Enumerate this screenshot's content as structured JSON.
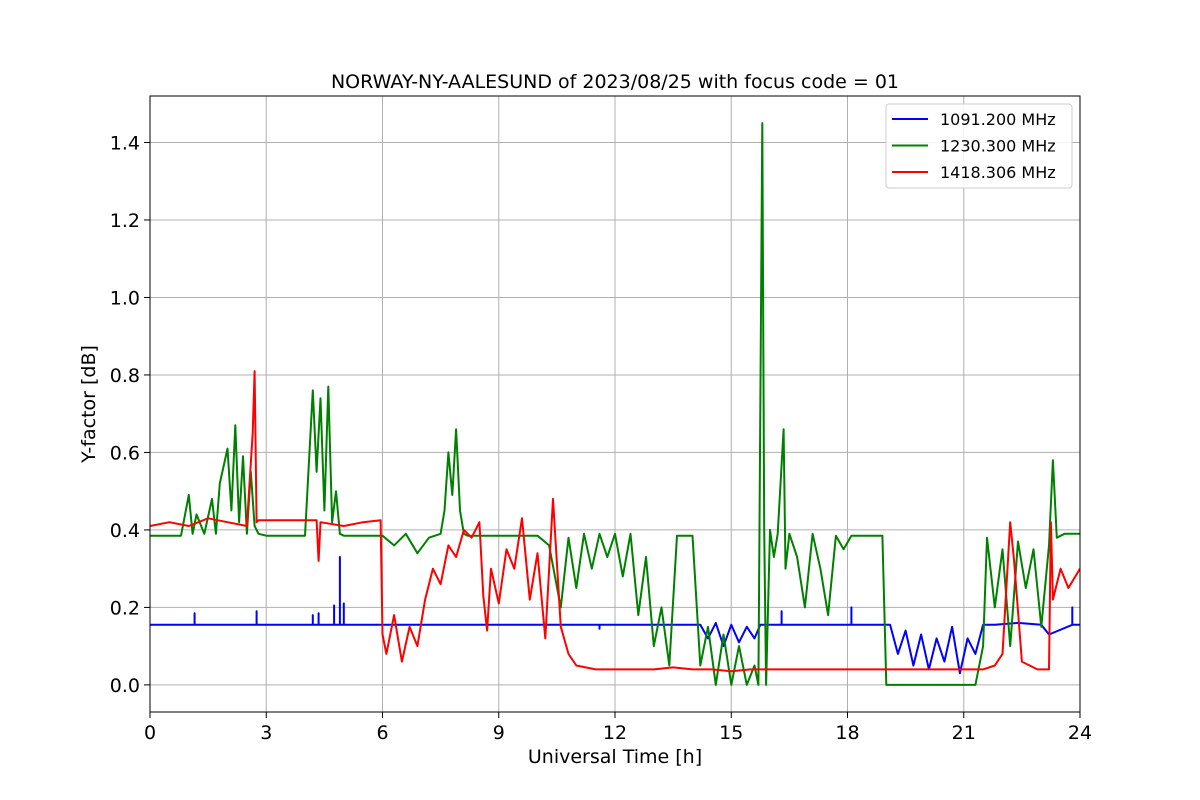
{
  "chart_data": {
    "type": "line",
    "title": "NORWAY-NY-AALESUND of 2023/08/25 with focus code = 01",
    "xlabel": "Universal Time [h]",
    "ylabel": "Y-factor [dB]",
    "xlim": [
      0,
      24
    ],
    "ylim": [
      -0.07,
      1.52
    ],
    "xticks": [
      0,
      3,
      6,
      9,
      12,
      15,
      18,
      21,
      24
    ],
    "yticks": [
      0.0,
      0.2,
      0.4,
      0.6,
      0.8,
      1.0,
      1.2,
      1.4
    ],
    "xtick_labels": [
      "0",
      "3",
      "6",
      "9",
      "12",
      "15",
      "18",
      "21",
      "24"
    ],
    "ytick_labels": [
      "0.0",
      "0.2",
      "0.4",
      "0.6",
      "0.8",
      "1.0",
      "1.2",
      "1.4"
    ],
    "grid": true,
    "legend_position": "top-right",
    "series": [
      {
        "name": "1091.200 MHz",
        "color": "#0000ff",
        "x": [
          0,
          1.15,
          1.15,
          1.15,
          2.75,
          2.75,
          2.75,
          4.2,
          4.2,
          4.2,
          4.35,
          4.35,
          4.35,
          4.75,
          4.75,
          4.75,
          4.9,
          4.9,
          4.9,
          5.0,
          5.0,
          5.0,
          11.6,
          11.6,
          11.6,
          14.2,
          14.4,
          14.6,
          14.8,
          15.0,
          15.2,
          15.4,
          15.6,
          15.75,
          16.0,
          16.3,
          16.3,
          16.3,
          18.1,
          18.1,
          18.1,
          19.1,
          19.3,
          19.5,
          19.7,
          19.9,
          20.1,
          20.3,
          20.5,
          20.7,
          20.9,
          21.1,
          21.3,
          21.5,
          21.8,
          22.4,
          23.0,
          23.2,
          23.8,
          23.8,
          23.8,
          24
        ],
        "y": [
          0.155,
          0.155,
          0.185,
          0.155,
          0.155,
          0.19,
          0.155,
          0.155,
          0.18,
          0.155,
          0.155,
          0.185,
          0.155,
          0.155,
          0.205,
          0.155,
          0.155,
          0.33,
          0.155,
          0.155,
          0.21,
          0.155,
          0.155,
          0.145,
          0.155,
          0.155,
          0.12,
          0.16,
          0.1,
          0.155,
          0.11,
          0.15,
          0.12,
          0.155,
          0.155,
          0.155,
          0.19,
          0.155,
          0.155,
          0.2,
          0.155,
          0.155,
          0.08,
          0.14,
          0.05,
          0.13,
          0.04,
          0.12,
          0.06,
          0.15,
          0.03,
          0.12,
          0.08,
          0.155,
          0.155,
          0.16,
          0.155,
          0.13,
          0.155,
          0.2,
          0.155,
          0.155
        ]
      },
      {
        "name": "1230.300 MHz",
        "color": "#008000",
        "x": [
          0,
          0.8,
          1.0,
          1.1,
          1.2,
          1.4,
          1.6,
          1.7,
          1.8,
          2.0,
          2.1,
          2.2,
          2.3,
          2.4,
          2.5,
          2.6,
          2.7,
          2.8,
          3.0,
          3.5,
          4.0,
          4.2,
          4.3,
          4.4,
          4.5,
          4.6,
          4.7,
          4.8,
          4.9,
          5.0,
          5.5,
          6.0,
          6.3,
          6.6,
          6.9,
          7.2,
          7.5,
          7.6,
          7.7,
          7.8,
          7.9,
          8.0,
          8.1,
          8.2,
          8.5,
          9.0,
          9.5,
          10.0,
          10.3,
          10.6,
          10.8,
          11.0,
          11.2,
          11.4,
          11.6,
          11.8,
          12.0,
          12.2,
          12.4,
          12.6,
          12.8,
          13.0,
          13.2,
          13.4,
          13.6,
          13.8,
          14.0,
          14.2,
          14.4,
          14.6,
          14.8,
          15.0,
          15.2,
          15.4,
          15.6,
          15.7,
          15.8,
          15.85,
          15.9,
          16.0,
          16.1,
          16.2,
          16.35,
          16.4,
          16.5,
          16.7,
          16.9,
          17.1,
          17.3,
          17.5,
          17.7,
          17.9,
          18.1,
          18.3,
          18.5,
          18.7,
          18.9,
          19.0,
          19.2,
          19.5,
          20.0,
          20.5,
          21.0,
          21.3,
          21.5,
          21.6,
          21.8,
          22.0,
          22.2,
          22.4,
          22.6,
          22.8,
          23.0,
          23.2,
          23.3,
          23.4,
          23.6,
          23.8,
          24
        ],
        "y": [
          0.385,
          0.385,
          0.49,
          0.39,
          0.44,
          0.39,
          0.48,
          0.39,
          0.52,
          0.61,
          0.45,
          0.67,
          0.42,
          0.59,
          0.39,
          0.55,
          0.41,
          0.39,
          0.385,
          0.385,
          0.385,
          0.76,
          0.55,
          0.74,
          0.45,
          0.77,
          0.42,
          0.5,
          0.39,
          0.385,
          0.385,
          0.385,
          0.36,
          0.39,
          0.34,
          0.38,
          0.39,
          0.45,
          0.6,
          0.49,
          0.66,
          0.45,
          0.39,
          0.385,
          0.385,
          0.385,
          0.385,
          0.385,
          0.36,
          0.2,
          0.38,
          0.25,
          0.39,
          0.3,
          0.39,
          0.33,
          0.39,
          0.28,
          0.39,
          0.18,
          0.33,
          0.1,
          0.2,
          0.05,
          0.385,
          0.385,
          0.385,
          0.05,
          0.15,
          0.0,
          0.13,
          0.0,
          0.1,
          0.0,
          0.05,
          0.0,
          1.45,
          0.4,
          0.0,
          0.4,
          0.33,
          0.39,
          0.66,
          0.3,
          0.39,
          0.33,
          0.2,
          0.39,
          0.3,
          0.18,
          0.385,
          0.35,
          0.385,
          0.385,
          0.385,
          0.385,
          0.385,
          0.0,
          0.0,
          0.0,
          0.0,
          0.0,
          0.0,
          0.0,
          0.1,
          0.38,
          0.2,
          0.35,
          0.1,
          0.37,
          0.25,
          0.35,
          0.15,
          0.36,
          0.58,
          0.38,
          0.39,
          0.39,
          0.39
        ]
      },
      {
        "name": "1418.306 MHz",
        "color": "#ff0000",
        "x": [
          0,
          0.5,
          1.0,
          1.5,
          2.0,
          2.5,
          2.65,
          2.7,
          2.75,
          2.8,
          3.0,
          3.5,
          4.0,
          4.3,
          4.35,
          4.4,
          5.0,
          5.5,
          5.95,
          6.0,
          6.1,
          6.3,
          6.5,
          6.7,
          6.9,
          7.1,
          7.3,
          7.5,
          7.7,
          7.9,
          8.1,
          8.3,
          8.5,
          8.6,
          8.7,
          8.8,
          9.0,
          9.2,
          9.4,
          9.6,
          9.8,
          10.0,
          10.2,
          10.4,
          10.6,
          10.8,
          11.0,
          11.5,
          12.0,
          12.5,
          13.0,
          13.5,
          14.0,
          14.5,
          15.0,
          15.5,
          16.0,
          16.5,
          17.0,
          17.5,
          18.0,
          18.5,
          19.0,
          19.5,
          20.0,
          20.5,
          21.0,
          21.5,
          21.8,
          22.0,
          22.2,
          22.3,
          22.5,
          22.7,
          22.9,
          23.1,
          23.2,
          23.25,
          23.3,
          23.5,
          23.7,
          24
        ],
        "y": [
          0.41,
          0.42,
          0.41,
          0.43,
          0.42,
          0.41,
          0.65,
          0.81,
          0.42,
          0.425,
          0.425,
          0.425,
          0.425,
          0.425,
          0.32,
          0.42,
          0.41,
          0.42,
          0.425,
          0.13,
          0.08,
          0.18,
          0.06,
          0.15,
          0.1,
          0.22,
          0.3,
          0.26,
          0.36,
          0.33,
          0.4,
          0.38,
          0.42,
          0.23,
          0.14,
          0.3,
          0.21,
          0.35,
          0.3,
          0.43,
          0.22,
          0.34,
          0.12,
          0.48,
          0.15,
          0.08,
          0.05,
          0.04,
          0.04,
          0.04,
          0.04,
          0.045,
          0.04,
          0.04,
          0.035,
          0.04,
          0.04,
          0.04,
          0.04,
          0.04,
          0.04,
          0.04,
          0.04,
          0.04,
          0.04,
          0.04,
          0.04,
          0.04,
          0.05,
          0.08,
          0.42,
          0.32,
          0.06,
          0.05,
          0.04,
          0.04,
          0.04,
          0.42,
          0.22,
          0.3,
          0.25,
          0.3
        ]
      }
    ]
  }
}
